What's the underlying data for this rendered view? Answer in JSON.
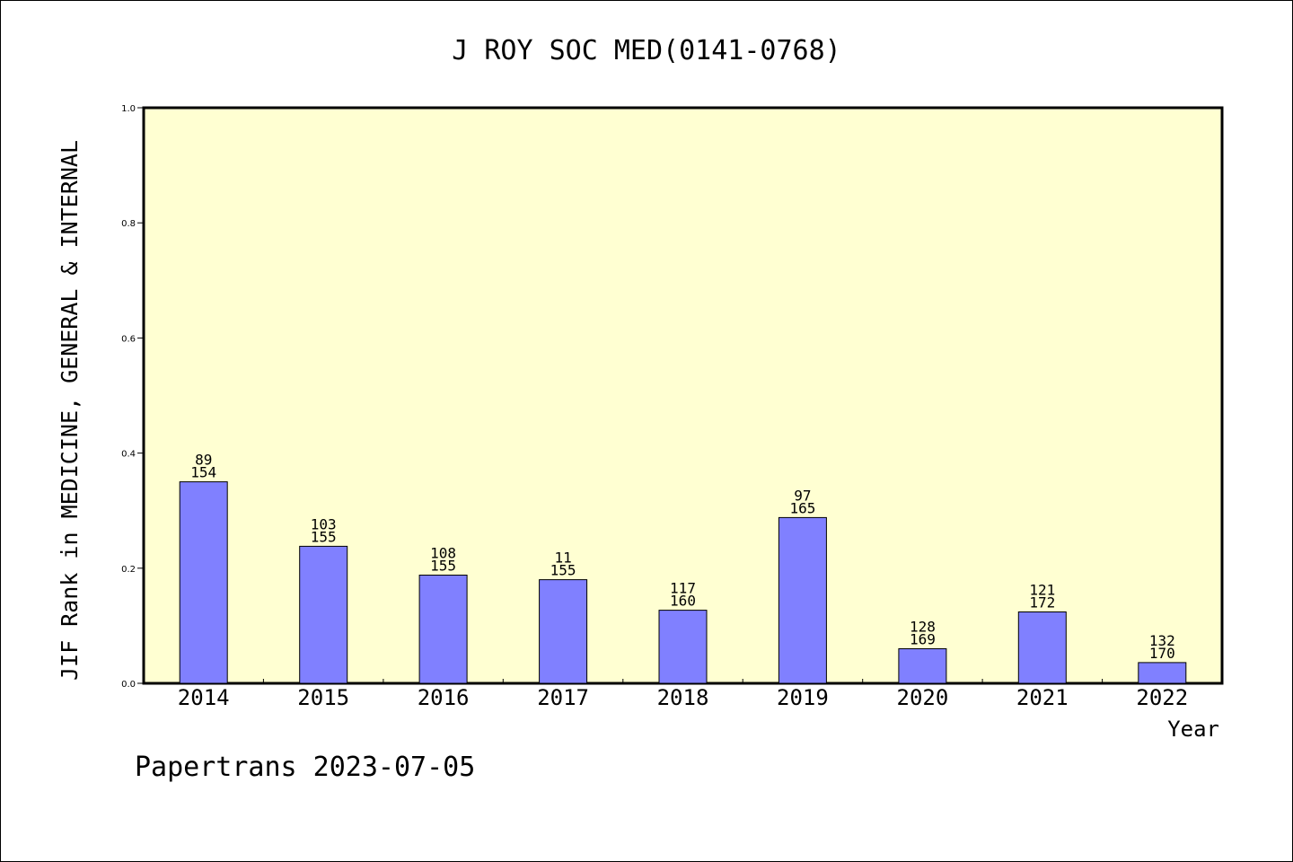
{
  "chart_data": {
    "type": "bar",
    "title": "J ROY SOC MED(0141-0768)",
    "xlabel": "Year",
    "ylabel": "JIF Rank in MEDICINE, GENERAL & INTERNAL",
    "ylim": [
      0,
      1.0
    ],
    "yticks": [
      "0.0",
      "0.2",
      "0.4",
      "0.6",
      "0.8",
      "1.0"
    ],
    "grid": false,
    "legend": "none",
    "categories": [
      "2014",
      "2015",
      "2016",
      "2017",
      "2018",
      "2019",
      "2020",
      "2021",
      "2022"
    ],
    "values": [
      0.35,
      0.238,
      0.188,
      0.18,
      0.127,
      0.288,
      0.06,
      0.124,
      0.036
    ],
    "labels_top": [
      "89",
      "103",
      "108",
      "11",
      "117",
      "97",
      "128",
      "121",
      "132"
    ],
    "labels_bottom": [
      "154",
      "155",
      "155",
      "155",
      "160",
      "165",
      "169",
      "172",
      "170"
    ],
    "colors": {
      "plot_bg": "#ffffd2",
      "bar_fill": "#8080ff",
      "bar_stroke": "#000000",
      "axis": "#000000"
    }
  },
  "footer": {
    "text": "Papertrans 2023-07-05"
  }
}
